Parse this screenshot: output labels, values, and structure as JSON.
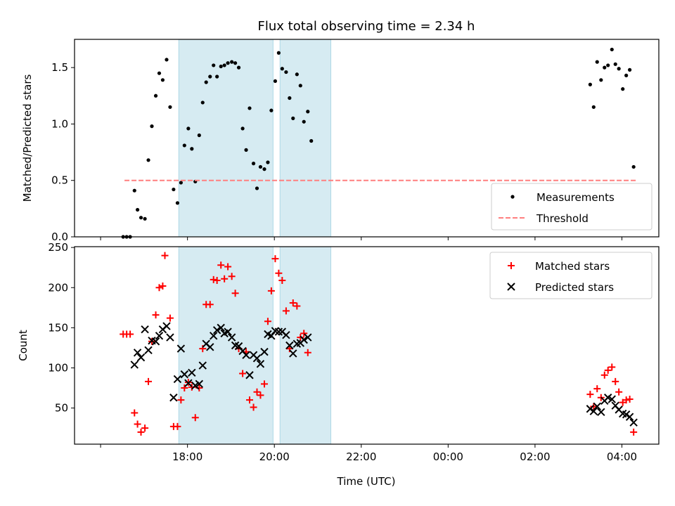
{
  "chart_data": [
    {
      "type": "scatter",
      "title": "Flux total observing time = 2.34 h",
      "ylabel": "Matched/Predicted stars",
      "xlabel": "",
      "x_unit": "hours since 00:00 UTC (values >= 24 are next day)",
      "xlim": [
        15.4,
        28.85
      ],
      "ylim": [
        0,
        1.75
      ],
      "yticks": [
        0.0,
        0.5,
        1.0,
        1.5
      ],
      "ytick_labels": [
        "0.0",
        "0.5",
        "1.0",
        "1.5"
      ],
      "shaded_intervals": [
        [
          17.8,
          19.97
        ],
        [
          20.13,
          21.3
        ]
      ],
      "legend": {
        "position": "lower right",
        "entries": [
          "Measurements",
          "Threshold"
        ]
      },
      "series": [
        {
          "name": "Measurements",
          "marker": "dot",
          "color": "#000000",
          "points": [
            [
              16.52,
              0.0
            ],
            [
              16.6,
              0.0
            ],
            [
              16.68,
              0.0
            ],
            [
              16.78,
              0.41
            ],
            [
              16.85,
              0.24
            ],
            [
              16.93,
              0.17
            ],
            [
              17.02,
              0.16
            ],
            [
              17.1,
              0.68
            ],
            [
              17.18,
              0.98
            ],
            [
              17.27,
              1.25
            ],
            [
              17.35,
              1.45
            ],
            [
              17.43,
              1.39
            ],
            [
              17.52,
              1.57
            ],
            [
              17.6,
              1.15
            ],
            [
              17.68,
              0.42
            ],
            [
              17.77,
              0.3
            ],
            [
              17.85,
              0.48
            ],
            [
              17.93,
              0.81
            ],
            [
              18.02,
              0.96
            ],
            [
              18.1,
              0.78
            ],
            [
              18.18,
              0.49
            ],
            [
              18.27,
              0.9
            ],
            [
              18.35,
              1.19
            ],
            [
              18.43,
              1.37
            ],
            [
              18.52,
              1.42
            ],
            [
              18.6,
              1.52
            ],
            [
              18.68,
              1.42
            ],
            [
              18.77,
              1.51
            ],
            [
              18.85,
              1.52
            ],
            [
              18.93,
              1.54
            ],
            [
              19.02,
              1.55
            ],
            [
              19.1,
              1.54
            ],
            [
              19.18,
              1.5
            ],
            [
              19.27,
              0.96
            ],
            [
              19.35,
              0.77
            ],
            [
              19.43,
              1.14
            ],
            [
              19.52,
              0.65
            ],
            [
              19.6,
              0.43
            ],
            [
              19.68,
              0.62
            ],
            [
              19.77,
              0.6
            ],
            [
              19.85,
              0.66
            ],
            [
              19.93,
              1.12
            ],
            [
              20.02,
              1.38
            ],
            [
              20.1,
              1.63
            ],
            [
              20.18,
              1.49
            ],
            [
              20.27,
              1.46
            ],
            [
              20.35,
              1.23
            ],
            [
              20.43,
              1.05
            ],
            [
              20.52,
              1.44
            ],
            [
              20.6,
              1.34
            ],
            [
              20.68,
              1.02
            ],
            [
              20.77,
              1.11
            ],
            [
              20.85,
              0.85
            ],
            [
              27.27,
              1.35
            ],
            [
              27.35,
              1.15
            ],
            [
              27.43,
              1.55
            ],
            [
              27.52,
              1.39
            ],
            [
              27.6,
              1.5
            ],
            [
              27.68,
              1.52
            ],
            [
              27.77,
              1.66
            ],
            [
              27.85,
              1.53
            ],
            [
              27.93,
              1.49
            ],
            [
              28.02,
              1.31
            ],
            [
              28.1,
              1.43
            ],
            [
              28.18,
              1.48
            ],
            [
              28.27,
              0.62
            ]
          ]
        },
        {
          "name": "Threshold",
          "style": "dashed",
          "color": "#ff7f7f",
          "points": [
            [
              16.55,
              0.5
            ],
            [
              28.35,
              0.5
            ]
          ]
        }
      ]
    },
    {
      "type": "scatter",
      "title": "",
      "ylabel": "Count",
      "xlabel": "Time (UTC)",
      "xlim": [
        15.4,
        28.85
      ],
      "ylim": [
        5,
        251
      ],
      "yticks": [
        50,
        100,
        150,
        200,
        250
      ],
      "ytick_labels": [
        "50",
        "100",
        "150",
        "200",
        "250"
      ],
      "xticks": [
        16,
        18,
        20,
        22,
        24,
        26,
        28
      ],
      "xtick_labels": [
        "18:00",
        "20:00",
        "22:00",
        "00:00",
        "02:00",
        "04:00"
      ],
      "xtick_label_values": [
        18,
        20,
        22,
        24,
        26,
        28
      ],
      "shaded_intervals": [
        [
          17.8,
          19.97
        ],
        [
          20.13,
          21.3
        ]
      ],
      "legend": {
        "position": "upper right",
        "entries": [
          "Matched stars",
          "Predicted stars"
        ]
      },
      "series": [
        {
          "name": "Matched stars",
          "marker": "plus",
          "color": "#ff0000",
          "points": [
            [
              16.52,
              142
            ],
            [
              16.6,
              142
            ],
            [
              16.68,
              142
            ],
            [
              16.78,
              44
            ],
            [
              16.85,
              30
            ],
            [
              16.93,
              20
            ],
            [
              17.02,
              25
            ],
            [
              17.1,
              83
            ],
            [
              17.18,
              133
            ],
            [
              17.27,
              166
            ],
            [
              17.35,
              200
            ],
            [
              17.43,
              202
            ],
            [
              17.48,
              240
            ],
            [
              17.6,
              162
            ],
            [
              17.68,
              27
            ],
            [
              17.77,
              27
            ],
            [
              17.85,
              60
            ],
            [
              17.93,
              75
            ],
            [
              18.02,
              82
            ],
            [
              18.1,
              76
            ],
            [
              18.18,
              38
            ],
            [
              18.27,
              75
            ],
            [
              18.35,
              124
            ],
            [
              18.43,
              179
            ],
            [
              18.52,
              179
            ],
            [
              18.6,
              210
            ],
            [
              18.68,
              209
            ],
            [
              18.77,
              228
            ],
            [
              18.85,
              211
            ],
            [
              18.93,
              226
            ],
            [
              19.02,
              214
            ],
            [
              19.1,
              193
            ],
            [
              19.18,
              124
            ],
            [
              19.27,
              93
            ],
            [
              19.35,
              120
            ],
            [
              19.43,
              60
            ],
            [
              19.52,
              51
            ],
            [
              19.6,
              70
            ],
            [
              19.68,
              66
            ],
            [
              19.77,
              80
            ],
            [
              19.85,
              158
            ],
            [
              19.93,
              196
            ],
            [
              20.02,
              236
            ],
            [
              20.1,
              218
            ],
            [
              20.18,
              209
            ],
            [
              20.27,
              171
            ],
            [
              20.35,
              124
            ],
            [
              20.43,
              181
            ],
            [
              20.52,
              177
            ],
            [
              20.6,
              138
            ],
            [
              20.68,
              143
            ],
            [
              20.77,
              119
            ],
            [
              27.27,
              67
            ],
            [
              27.35,
              52
            ],
            [
              27.43,
              74
            ],
            [
              27.52,
              63
            ],
            [
              27.6,
              91
            ],
            [
              27.68,
              97
            ],
            [
              27.77,
              101
            ],
            [
              27.85,
              83
            ],
            [
              27.93,
              70
            ],
            [
              28.02,
              57
            ],
            [
              28.1,
              60
            ],
            [
              28.18,
              61
            ],
            [
              28.27,
              20
            ]
          ]
        },
        {
          "name": "Predicted stars",
          "marker": "x",
          "color": "#000000",
          "points": [
            [
              16.78,
              104
            ],
            [
              16.85,
              119
            ],
            [
              16.93,
              113
            ],
            [
              17.02,
              148
            ],
            [
              17.1,
              122
            ],
            [
              17.18,
              134
            ],
            [
              17.27,
              133
            ],
            [
              17.35,
              140
            ],
            [
              17.43,
              148
            ],
            [
              17.52,
              152
            ],
            [
              17.6,
              138
            ],
            [
              17.68,
              63
            ],
            [
              17.77,
              86
            ],
            [
              17.85,
              124
            ],
            [
              17.93,
              92
            ],
            [
              18.02,
              81
            ],
            [
              18.1,
              94
            ],
            [
              18.18,
              78
            ],
            [
              18.27,
              80
            ],
            [
              18.35,
              103
            ],
            [
              18.43,
              130
            ],
            [
              18.52,
              126
            ],
            [
              18.6,
              140
            ],
            [
              18.68,
              147
            ],
            [
              18.77,
              150
            ],
            [
              18.85,
              143
            ],
            [
              18.93,
              145
            ],
            [
              19.02,
              138
            ],
            [
              19.1,
              128
            ],
            [
              19.18,
              127
            ],
            [
              19.27,
              121
            ],
            [
              19.35,
              116
            ],
            [
              19.43,
              91
            ],
            [
              19.52,
              116
            ],
            [
              19.6,
              112
            ],
            [
              19.68,
              105
            ],
            [
              19.77,
              120
            ],
            [
              19.85,
              142
            ],
            [
              19.93,
              140
            ],
            [
              20.02,
              146
            ],
            [
              20.1,
              145
            ],
            [
              20.18,
              145
            ],
            [
              20.27,
              141
            ],
            [
              20.35,
              128
            ],
            [
              20.43,
              118
            ],
            [
              20.52,
              130
            ],
            [
              20.6,
              131
            ],
            [
              20.68,
              135
            ],
            [
              20.77,
              138
            ],
            [
              27.27,
              49
            ],
            [
              27.35,
              46
            ],
            [
              27.43,
              52
            ],
            [
              27.52,
              45
            ],
            [
              27.6,
              59
            ],
            [
              27.68,
              63
            ],
            [
              27.77,
              61
            ],
            [
              27.85,
              53
            ],
            [
              27.93,
              48
            ],
            [
              28.02,
              43
            ],
            [
              28.1,
              42
            ],
            [
              28.18,
              39
            ],
            [
              28.27,
              32
            ]
          ]
        }
      ]
    }
  ]
}
